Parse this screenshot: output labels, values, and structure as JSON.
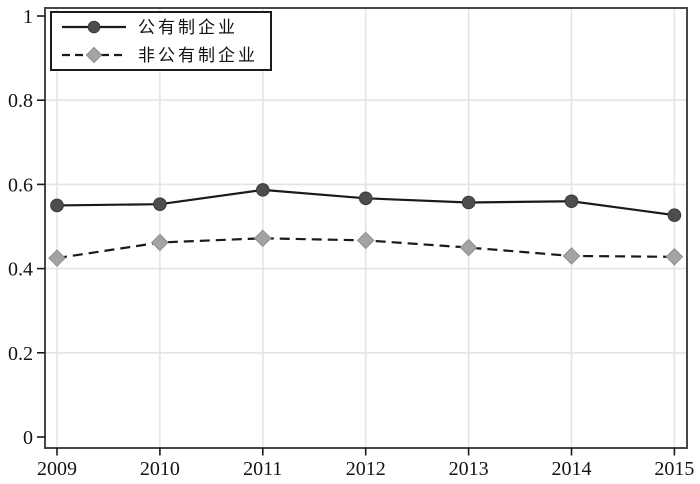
{
  "figure": {
    "background_color": "#ffffff",
    "frame_color": "#474747",
    "tick_color": "#1a1a1a",
    "gridline_color": "#e4e4e4"
  },
  "chart_data": {
    "type": "line",
    "title": "",
    "xlabel": "",
    "ylabel": "",
    "categories": [
      "2009",
      "2010",
      "2011",
      "2012",
      "2013",
      "2014",
      "2015"
    ],
    "series": [
      {
        "name": "公有制企业",
        "values": [
          0.55,
          0.553,
          0.587,
          0.567,
          0.557,
          0.56,
          0.527
        ],
        "line_style": "solid",
        "line_color": "#1a1a1a",
        "marker": "circle",
        "marker_color": "#4d4d4d",
        "marker_edge_color": "#3a3a3a"
      },
      {
        "name": "非公有制企业",
        "values": [
          0.425,
          0.462,
          0.472,
          0.467,
          0.45,
          0.43,
          0.428
        ],
        "line_style": "dashed",
        "line_color": "#1a1a1a",
        "marker": "diamond",
        "marker_color": "#a3a3a3",
        "marker_edge_color": "#8f8f8f"
      }
    ],
    "ylim": [
      0,
      1
    ],
    "y_ticks": {
      "values": [
        0,
        0.2,
        0.4,
        0.6,
        0.8,
        1
      ],
      "labels": [
        "0",
        "0.2",
        "0.4",
        "0.6",
        "0.8",
        "1"
      ]
    },
    "grid": {
      "horizontal": true,
      "vertical": true
    },
    "legend": {
      "position": "top-left"
    }
  }
}
